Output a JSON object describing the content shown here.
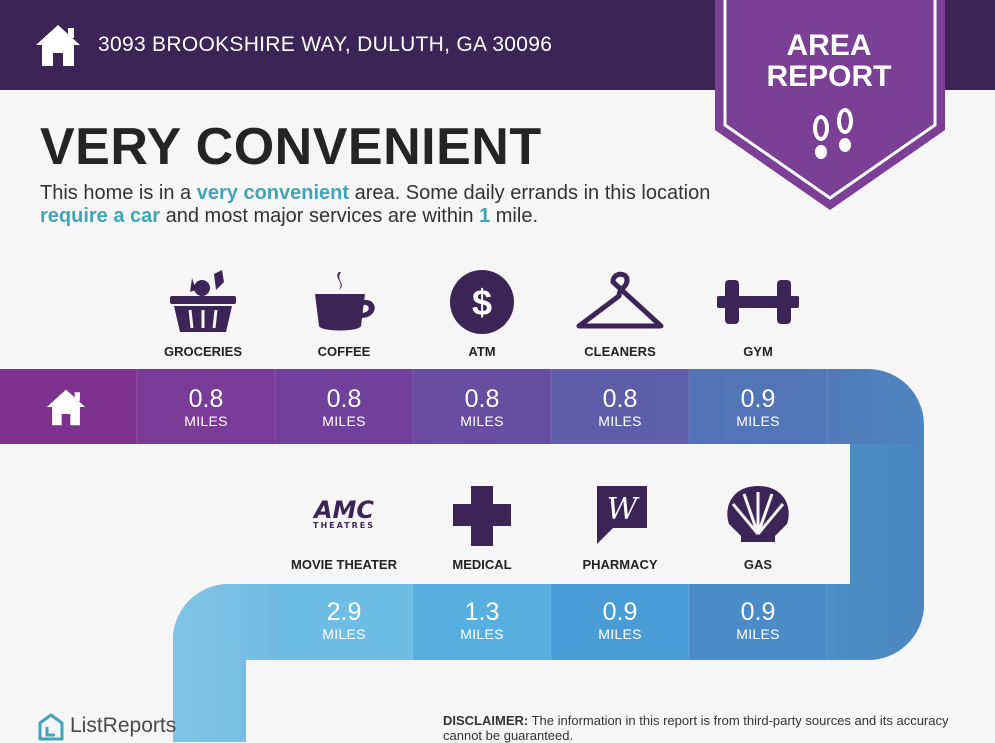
{
  "header": {
    "address": "3093 BROOKSHIRE WAY, DULUTH, GA 30096",
    "badge_line1": "AREA",
    "badge_line2": "REPORT"
  },
  "title": "VERY CONVENIENT",
  "description": {
    "p1": "This home is in a ",
    "h1": "very convenient",
    "p2": " area. Some daily errands in this location ",
    "h2": "require a car",
    "p3": " and most major services are within ",
    "h3": "1",
    "p4": " mile."
  },
  "row1": [
    {
      "label": "GROCERIES",
      "distance": "0.8",
      "unit": "MILES",
      "icon": "grocery-basket-icon"
    },
    {
      "label": "COFFEE",
      "distance": "0.8",
      "unit": "MILES",
      "icon": "coffee-cup-icon"
    },
    {
      "label": "ATM",
      "distance": "0.8",
      "unit": "MILES",
      "icon": "dollar-icon"
    },
    {
      "label": "CLEANERS",
      "distance": "0.8",
      "unit": "MILES",
      "icon": "hanger-icon"
    },
    {
      "label": "GYM",
      "distance": "0.9",
      "unit": "MILES",
      "icon": "dumbbell-icon"
    }
  ],
  "row2": [
    {
      "label": "MOVIE THEATER",
      "distance": "2.9",
      "unit": "MILES",
      "icon": "amc-theatres-logo",
      "logo_top": "AMC",
      "logo_bottom": "THEATRES"
    },
    {
      "label": "MEDICAL",
      "distance": "1.3",
      "unit": "MILES",
      "icon": "medical-cross-icon"
    },
    {
      "label": "PHARMACY",
      "distance": "0.9",
      "unit": "MILES",
      "icon": "walgreens-logo",
      "logo_letter": "W"
    },
    {
      "label": "GAS",
      "distance": "0.9",
      "unit": "MILES",
      "icon": "shell-logo"
    }
  ],
  "footer": {
    "brand": "ListReports",
    "disclaimer_label": "DISCLAIMER:",
    "disclaimer_text": " The information in this report is from third-party sources and its accuracy cannot be guaranteed."
  },
  "colors": {
    "header_bg": "#3d2456",
    "badge": "#7b3f96",
    "highlight": "#43a3b9",
    "band_start": "#7b3590",
    "band_end": "#4c86c0",
    "band2_light": "#7fc4e6"
  }
}
